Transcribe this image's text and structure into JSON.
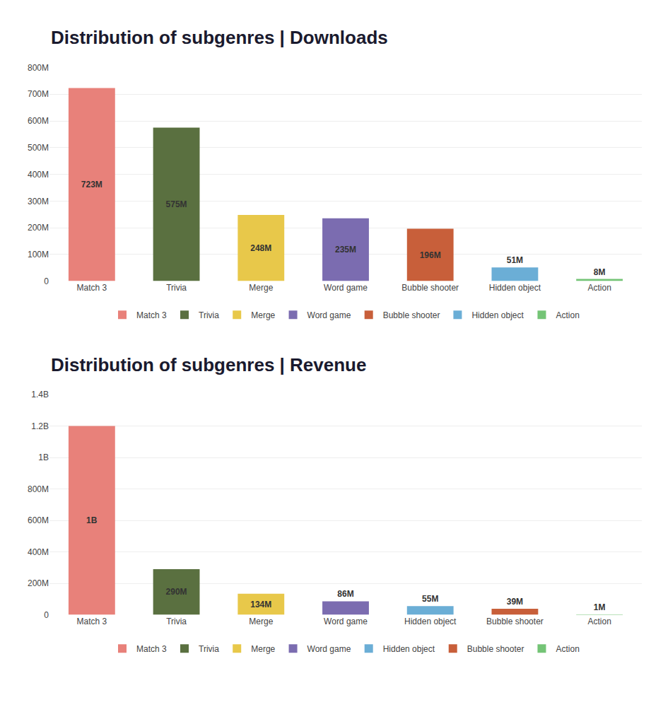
{
  "chart_data": [
    {
      "type": "bar",
      "title": "Distribution of subgenres | Downloads",
      "categories": [
        "Match 3",
        "Trivia",
        "Merge",
        "Word game",
        "Bubble shooter",
        "Hidden object",
        "Action"
      ],
      "values": [
        723000000,
        575000000,
        248000000,
        235000000,
        196000000,
        51000000,
        8000000
      ],
      "value_labels": [
        "723M",
        "575M",
        "248M",
        "235M",
        "196M",
        "51M",
        "8M"
      ],
      "colors": [
        "#E8817A",
        "#5A7040",
        "#E8C84A",
        "#7B6CB0",
        "#C85F3A",
        "#6BAED6",
        "#74C476"
      ],
      "ylim": [
        0,
        800000000
      ],
      "yticks": [
        0,
        {
          "value": 100000000,
          "label": "100M"
        },
        {
          "value": 200000000,
          "label": "200M"
        },
        {
          "value": 300000000,
          "label": "300M"
        },
        {
          "value": 400000000,
          "label": "400M"
        },
        {
          "value": 500000000,
          "label": "500M"
        },
        {
          "value": 600000000,
          "label": "600M"
        },
        {
          "value": 700000000,
          "label": "700M"
        },
        {
          "value": 800000000,
          "label": "800M"
        }
      ],
      "grid": true,
      "legend": "bottom",
      "data_labels": true
    },
    {
      "type": "bar",
      "title": "Distribution of subgenres | Revenue",
      "categories": [
        "Match 3",
        "Trivia",
        "Merge",
        "Word game",
        "Hidden object",
        "Bubble shooter",
        "Action"
      ],
      "values": [
        1200000000,
        290000000,
        134000000,
        86000000,
        55000000,
        39000000,
        1000000
      ],
      "value_labels": [
        "1B",
        "290M",
        "134M",
        "86M",
        "55M",
        "39M",
        "1M"
      ],
      "colors": [
        "#E8817A",
        "#5A7040",
        "#E8C84A",
        "#7B6CB0",
        "#6BAED6",
        "#C85F3A",
        "#74C476"
      ],
      "ylim": [
        0,
        1400000000
      ],
      "yticks": [
        0,
        {
          "value": 200000000,
          "label": "200M"
        },
        {
          "value": 400000000,
          "label": "400M"
        },
        {
          "value": 600000000,
          "label": "600M"
        },
        {
          "value": 800000000,
          "label": "800M"
        },
        {
          "value": 1000000000,
          "label": "1B"
        },
        {
          "value": 1200000000,
          "label": "1.2B"
        },
        {
          "value": 1400000000,
          "label": "1.4B"
        }
      ],
      "grid": true,
      "legend": "bottom",
      "data_labels": true
    }
  ]
}
